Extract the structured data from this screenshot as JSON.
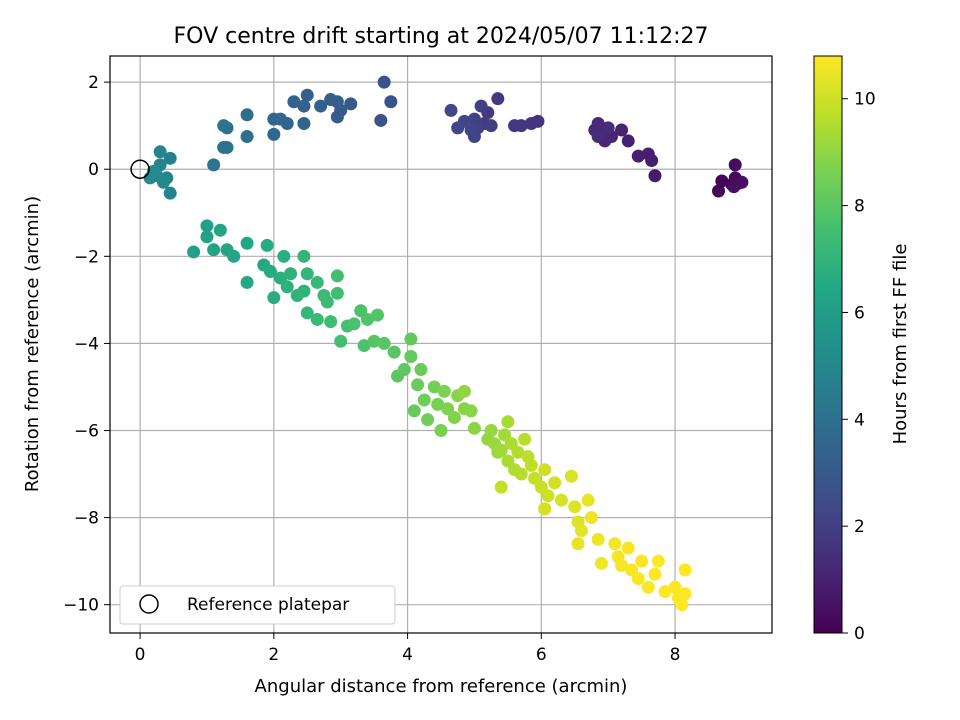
{
  "chart_data": {
    "type": "scatter",
    "title": "FOV centre drift starting at 2024/05/07 11:12:27",
    "xlabel": "Angular distance from reference (arcmin)",
    "ylabel": "Rotation from reference (arcmin)",
    "xlim": [
      -0.45,
      9.45
    ],
    "ylim": [
      -10.65,
      2.6
    ],
    "xticks": [
      0,
      2,
      4,
      6,
      8
    ],
    "yticks": [
      2,
      0,
      -2,
      -4,
      -6,
      -8,
      -10
    ],
    "grid": true,
    "colormap": "viridis",
    "colorbar": {
      "label": "Hours from first FF file",
      "range": [
        0,
        10.8
      ],
      "ticks": [
        0,
        2,
        4,
        6,
        8,
        10
      ]
    },
    "legend": {
      "placement": "lower-left",
      "entries": [
        "Reference platepar"
      ]
    },
    "reference": {
      "x": 0,
      "y": 0
    },
    "series": [
      {
        "color_by": "hours",
        "points": [
          {
            "x": 8.65,
            "y": -0.5,
            "c": 0.1
          },
          {
            "x": 8.7,
            "y": -0.27,
            "c": 0.15
          },
          {
            "x": 8.85,
            "y": -0.35,
            "c": 0.2
          },
          {
            "x": 8.9,
            "y": -0.2,
            "c": 0.25
          },
          {
            "x": 8.95,
            "y": -0.32,
            "c": 0.3
          },
          {
            "x": 8.9,
            "y": 0.1,
            "c": 0.35
          },
          {
            "x": 8.88,
            "y": -0.4,
            "c": 0.4
          },
          {
            "x": 9.0,
            "y": -0.3,
            "c": 0.45
          },
          {
            "x": 7.7,
            "y": -0.15,
            "c": 0.8
          },
          {
            "x": 7.65,
            "y": 0.2,
            "c": 0.85
          },
          {
            "x": 7.6,
            "y": 0.35,
            "c": 0.9
          },
          {
            "x": 7.45,
            "y": 0.3,
            "c": 0.95
          },
          {
            "x": 7.3,
            "y": 0.65,
            "c": 1.0
          },
          {
            "x": 7.2,
            "y": 0.9,
            "c": 1.05
          },
          {
            "x": 7.05,
            "y": 0.75,
            "c": 1.1
          },
          {
            "x": 6.95,
            "y": 0.65,
            "c": 1.15
          },
          {
            "x": 6.9,
            "y": 0.85,
            "c": 1.2
          },
          {
            "x": 6.85,
            "y": 1.05,
            "c": 1.25
          },
          {
            "x": 6.8,
            "y": 0.9,
            "c": 1.3
          },
          {
            "x": 6.85,
            "y": 0.75,
            "c": 1.35
          },
          {
            "x": 7.0,
            "y": 0.95,
            "c": 1.4
          },
          {
            "x": 5.95,
            "y": 1.1,
            "c": 1.6
          },
          {
            "x": 5.85,
            "y": 1.05,
            "c": 1.65
          },
          {
            "x": 5.7,
            "y": 1.0,
            "c": 1.7
          },
          {
            "x": 5.6,
            "y": 1.0,
            "c": 1.75
          },
          {
            "x": 5.35,
            "y": 1.62,
            "c": 1.8
          },
          {
            "x": 5.2,
            "y": 1.3,
            "c": 1.85
          },
          {
            "x": 5.15,
            "y": 1.05,
            "c": 1.9
          },
          {
            "x": 5.25,
            "y": 1.0,
            "c": 1.95
          },
          {
            "x": 5.1,
            "y": 1.45,
            "c": 2.0
          },
          {
            "x": 5.05,
            "y": 0.95,
            "c": 2.05
          },
          {
            "x": 5.0,
            "y": 1.15,
            "c": 2.1
          },
          {
            "x": 4.95,
            "y": 0.9,
            "c": 2.15
          },
          {
            "x": 5.0,
            "y": 0.75,
            "c": 2.2
          },
          {
            "x": 4.85,
            "y": 1.1,
            "c": 2.25
          },
          {
            "x": 4.75,
            "y": 0.95,
            "c": 2.3
          },
          {
            "x": 4.65,
            "y": 1.35,
            "c": 2.35
          },
          {
            "x": 3.65,
            "y": 2.0,
            "c": 2.7
          },
          {
            "x": 3.75,
            "y": 1.55,
            "c": 2.75
          },
          {
            "x": 3.6,
            "y": 1.12,
            "c": 2.8
          },
          {
            "x": 3.15,
            "y": 1.5,
            "c": 3.0
          },
          {
            "x": 3.0,
            "y": 1.35,
            "c": 3.05
          },
          {
            "x": 2.95,
            "y": 1.2,
            "c": 3.1
          },
          {
            "x": 2.95,
            "y": 1.55,
            "c": 3.15
          },
          {
            "x": 2.85,
            "y": 1.6,
            "c": 3.2
          },
          {
            "x": 2.7,
            "y": 1.45,
            "c": 3.25
          },
          {
            "x": 2.5,
            "y": 1.7,
            "c": 3.3
          },
          {
            "x": 2.45,
            "y": 1.45,
            "c": 3.35
          },
          {
            "x": 2.3,
            "y": 1.55,
            "c": 3.4
          },
          {
            "x": 2.45,
            "y": 1.05,
            "c": 3.45
          },
          {
            "x": 2.2,
            "y": 1.05,
            "c": 3.5
          },
          {
            "x": 2.1,
            "y": 1.15,
            "c": 3.55
          },
          {
            "x": 2.0,
            "y": 1.15,
            "c": 3.6
          },
          {
            "x": 2.0,
            "y": 0.8,
            "c": 3.65
          },
          {
            "x": 1.6,
            "y": 1.25,
            "c": 3.85
          },
          {
            "x": 1.6,
            "y": 0.75,
            "c": 3.9
          },
          {
            "x": 1.3,
            "y": 0.95,
            "c": 4.0
          },
          {
            "x": 1.25,
            "y": 1.0,
            "c": 4.05
          },
          {
            "x": 1.25,
            "y": 0.5,
            "c": 4.1
          },
          {
            "x": 1.3,
            "y": 0.5,
            "c": 4.15
          },
          {
            "x": 1.1,
            "y": 0.1,
            "c": 4.2
          },
          {
            "x": 0.45,
            "y": 0.25,
            "c": 4.7
          },
          {
            "x": 0.4,
            "y": -0.2,
            "c": 4.75
          },
          {
            "x": 0.45,
            "y": -0.55,
            "c": 4.8
          },
          {
            "x": 0.3,
            "y": 0.4,
            "c": 4.85
          },
          {
            "x": 0.3,
            "y": 0.1,
            "c": 4.9
          },
          {
            "x": 0.25,
            "y": -0.15,
            "c": 4.95
          },
          {
            "x": 0.15,
            "y": -0.2,
            "c": 5.0
          },
          {
            "x": 0.35,
            "y": -0.3,
            "c": 5.05
          },
          {
            "x": 0.2,
            "y": -0.05,
            "c": 5.1
          },
          {
            "x": 0.8,
            "y": -1.9,
            "c": 6.1
          },
          {
            "x": 1.0,
            "y": -1.3,
            "c": 6.15
          },
          {
            "x": 1.0,
            "y": -1.55,
            "c": 6.2
          },
          {
            "x": 1.1,
            "y": -1.85,
            "c": 6.25
          },
          {
            "x": 1.2,
            "y": -1.4,
            "c": 6.3
          },
          {
            "x": 1.3,
            "y": -1.85,
            "c": 6.35
          },
          {
            "x": 1.4,
            "y": -2.0,
            "c": 6.4
          },
          {
            "x": 1.6,
            "y": -1.7,
            "c": 6.45
          },
          {
            "x": 1.6,
            "y": -2.6,
            "c": 6.5
          },
          {
            "x": 1.85,
            "y": -2.2,
            "c": 6.55
          },
          {
            "x": 1.9,
            "y": -1.75,
            "c": 6.6
          },
          {
            "x": 1.95,
            "y": -2.35,
            "c": 6.65
          },
          {
            "x": 2.0,
            "y": -2.95,
            "c": 6.7
          },
          {
            "x": 2.1,
            "y": -2.5,
            "c": 6.75
          },
          {
            "x": 2.15,
            "y": -2.0,
            "c": 6.8
          },
          {
            "x": 2.2,
            "y": -2.7,
            "c": 6.85
          },
          {
            "x": 2.25,
            "y": -2.4,
            "c": 6.9
          },
          {
            "x": 2.35,
            "y": -2.9,
            "c": 6.95
          },
          {
            "x": 2.45,
            "y": -2.8,
            "c": 7.0
          },
          {
            "x": 2.45,
            "y": -2.0,
            "c": 7.05
          },
          {
            "x": 2.5,
            "y": -2.4,
            "c": 7.1
          },
          {
            "x": 2.5,
            "y": -3.3,
            "c": 7.15
          },
          {
            "x": 2.65,
            "y": -2.6,
            "c": 7.2
          },
          {
            "x": 2.65,
            "y": -3.45,
            "c": 7.25
          },
          {
            "x": 2.75,
            "y": -2.9,
            "c": 7.3
          },
          {
            "x": 2.8,
            "y": -3.05,
            "c": 7.35
          },
          {
            "x": 2.85,
            "y": -3.5,
            "c": 7.4
          },
          {
            "x": 2.95,
            "y": -2.85,
            "c": 7.45
          },
          {
            "x": 2.95,
            "y": -2.45,
            "c": 7.5
          },
          {
            "x": 3.0,
            "y": -3.95,
            "c": 7.55
          },
          {
            "x": 3.1,
            "y": -3.6,
            "c": 7.6
          },
          {
            "x": 3.2,
            "y": -3.55,
            "c": 7.65
          },
          {
            "x": 3.3,
            "y": -3.25,
            "c": 7.7
          },
          {
            "x": 3.35,
            "y": -4.05,
            "c": 7.75
          },
          {
            "x": 3.4,
            "y": -3.45,
            "c": 7.8
          },
          {
            "x": 3.55,
            "y": -3.35,
            "c": 7.85
          },
          {
            "x": 3.5,
            "y": -3.95,
            "c": 7.9
          },
          {
            "x": 3.65,
            "y": -4.0,
            "c": 7.95
          },
          {
            "x": 3.8,
            "y": -4.2,
            "c": 8.0
          },
          {
            "x": 3.85,
            "y": -4.75,
            "c": 8.05
          },
          {
            "x": 3.95,
            "y": -4.6,
            "c": 8.1
          },
          {
            "x": 4.05,
            "y": -3.9,
            "c": 8.15
          },
          {
            "x": 4.05,
            "y": -4.3,
            "c": 8.2
          },
          {
            "x": 4.1,
            "y": -5.55,
            "c": 8.25
          },
          {
            "x": 4.15,
            "y": -4.95,
            "c": 8.3
          },
          {
            "x": 4.2,
            "y": -4.6,
            "c": 8.35
          },
          {
            "x": 4.25,
            "y": -5.3,
            "c": 8.4
          },
          {
            "x": 4.3,
            "y": -5.75,
            "c": 8.45
          },
          {
            "x": 4.4,
            "y": -5.0,
            "c": 8.5
          },
          {
            "x": 4.45,
            "y": -5.4,
            "c": 8.55
          },
          {
            "x": 4.5,
            "y": -6.0,
            "c": 8.6
          },
          {
            "x": 4.55,
            "y": -5.1,
            "c": 8.65
          },
          {
            "x": 4.6,
            "y": -5.5,
            "c": 8.7
          },
          {
            "x": 4.7,
            "y": -5.7,
            "c": 8.75
          },
          {
            "x": 4.75,
            "y": -5.2,
            "c": 8.8
          },
          {
            "x": 4.85,
            "y": -5.5,
            "c": 8.85
          },
          {
            "x": 4.95,
            "y": -5.55,
            "c": 8.9
          },
          {
            "x": 5.0,
            "y": -5.95,
            "c": 8.95
          },
          {
            "x": 4.85,
            "y": -5.1,
            "c": 9.0
          },
          {
            "x": 5.2,
            "y": -6.2,
            "c": 9.05
          },
          {
            "x": 5.25,
            "y": -6.0,
            "c": 9.1
          },
          {
            "x": 5.3,
            "y": -6.3,
            "c": 9.15
          },
          {
            "x": 5.35,
            "y": -6.5,
            "c": 9.2
          },
          {
            "x": 5.4,
            "y": -6.45,
            "c": 9.25
          },
          {
            "x": 5.45,
            "y": -6.1,
            "c": 9.3
          },
          {
            "x": 5.5,
            "y": -5.8,
            "c": 9.35
          },
          {
            "x": 5.5,
            "y": -6.7,
            "c": 9.4
          },
          {
            "x": 5.55,
            "y": -6.3,
            "c": 9.45
          },
          {
            "x": 5.6,
            "y": -6.9,
            "c": 9.5
          },
          {
            "x": 5.65,
            "y": -6.5,
            "c": 9.55
          },
          {
            "x": 5.7,
            "y": -7.0,
            "c": 9.6
          },
          {
            "x": 5.75,
            "y": -6.2,
            "c": 9.65
          },
          {
            "x": 5.8,
            "y": -6.6,
            "c": 9.7
          },
          {
            "x": 5.85,
            "y": -6.8,
            "c": 9.75
          },
          {
            "x": 5.4,
            "y": -7.3,
            "c": 9.8
          },
          {
            "x": 5.9,
            "y": -7.1,
            "c": 9.85
          },
          {
            "x": 6.0,
            "y": -7.3,
            "c": 9.9
          },
          {
            "x": 6.05,
            "y": -6.9,
            "c": 9.95
          },
          {
            "x": 6.1,
            "y": -7.5,
            "c": 10.0
          },
          {
            "x": 6.2,
            "y": -7.2,
            "c": 10.05
          },
          {
            "x": 6.05,
            "y": -7.8,
            "c": 10.1
          },
          {
            "x": 6.3,
            "y": -7.6,
            "c": 10.15
          },
          {
            "x": 6.45,
            "y": -7.05,
            "c": 10.2
          },
          {
            "x": 6.5,
            "y": -7.75,
            "c": 10.25
          },
          {
            "x": 6.55,
            "y": -8.1,
            "c": 10.3
          },
          {
            "x": 6.6,
            "y": -8.3,
            "c": 10.35
          },
          {
            "x": 6.55,
            "y": -8.6,
            "c": 10.4
          },
          {
            "x": 6.7,
            "y": -7.6,
            "c": 10.45
          },
          {
            "x": 6.75,
            "y": -8.0,
            "c": 10.5
          },
          {
            "x": 6.85,
            "y": -8.5,
            "c": 10.55
          },
          {
            "x": 6.9,
            "y": -9.05,
            "c": 10.6
          },
          {
            "x": 7.1,
            "y": -8.6,
            "c": 10.62
          },
          {
            "x": 7.15,
            "y": -8.9,
            "c": 10.65
          },
          {
            "x": 7.2,
            "y": -9.1,
            "c": 10.68
          },
          {
            "x": 7.3,
            "y": -8.7,
            "c": 10.7
          },
          {
            "x": 7.35,
            "y": -9.2,
            "c": 10.72
          },
          {
            "x": 7.45,
            "y": -9.4,
            "c": 10.73
          },
          {
            "x": 7.5,
            "y": -9.0,
            "c": 10.74
          },
          {
            "x": 7.6,
            "y": -9.6,
            "c": 10.75
          },
          {
            "x": 7.7,
            "y": -9.3,
            "c": 10.76
          },
          {
            "x": 7.75,
            "y": -9.0,
            "c": 10.77
          },
          {
            "x": 7.85,
            "y": -9.7,
            "c": 10.78
          },
          {
            "x": 8.0,
            "y": -9.6,
            "c": 10.79
          },
          {
            "x": 8.05,
            "y": -9.85,
            "c": 10.8
          },
          {
            "x": 8.1,
            "y": -10.0,
            "c": 10.8
          },
          {
            "x": 8.15,
            "y": -9.2,
            "c": 10.8
          },
          {
            "x": 8.15,
            "y": -9.75,
            "c": 10.8
          }
        ]
      }
    ]
  }
}
